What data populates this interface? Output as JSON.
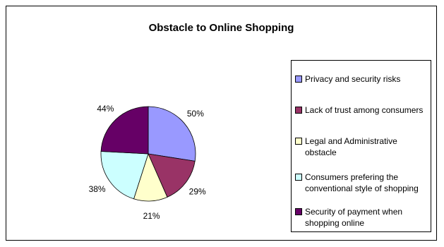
{
  "chart_data": {
    "type": "pie",
    "title": "Obstacle to Online Shopping",
    "categories": [
      "Privacy and security risks",
      "Lack of trust among consumers",
      "Legal and Administrative obstacle",
      "Consumers prefering the conventional style of shopping",
      "Security of payment when shopping online"
    ],
    "values": [
      50,
      29,
      21,
      38,
      44
    ],
    "data_labels": [
      "50%",
      "29%",
      "21%",
      "38%",
      "44%"
    ],
    "colors": [
      "#9999ff",
      "#993366",
      "#ffffcc",
      "#ccffff",
      "#660066"
    ],
    "legend": {
      "placement": "right",
      "entries": [
        "Privacy and security risks",
        "Lack of trust among consumers",
        "Legal and Administrative obstacle",
        "Consumers prefering the conventional style of shopping",
        "Security of payment when shopping online"
      ]
    }
  }
}
